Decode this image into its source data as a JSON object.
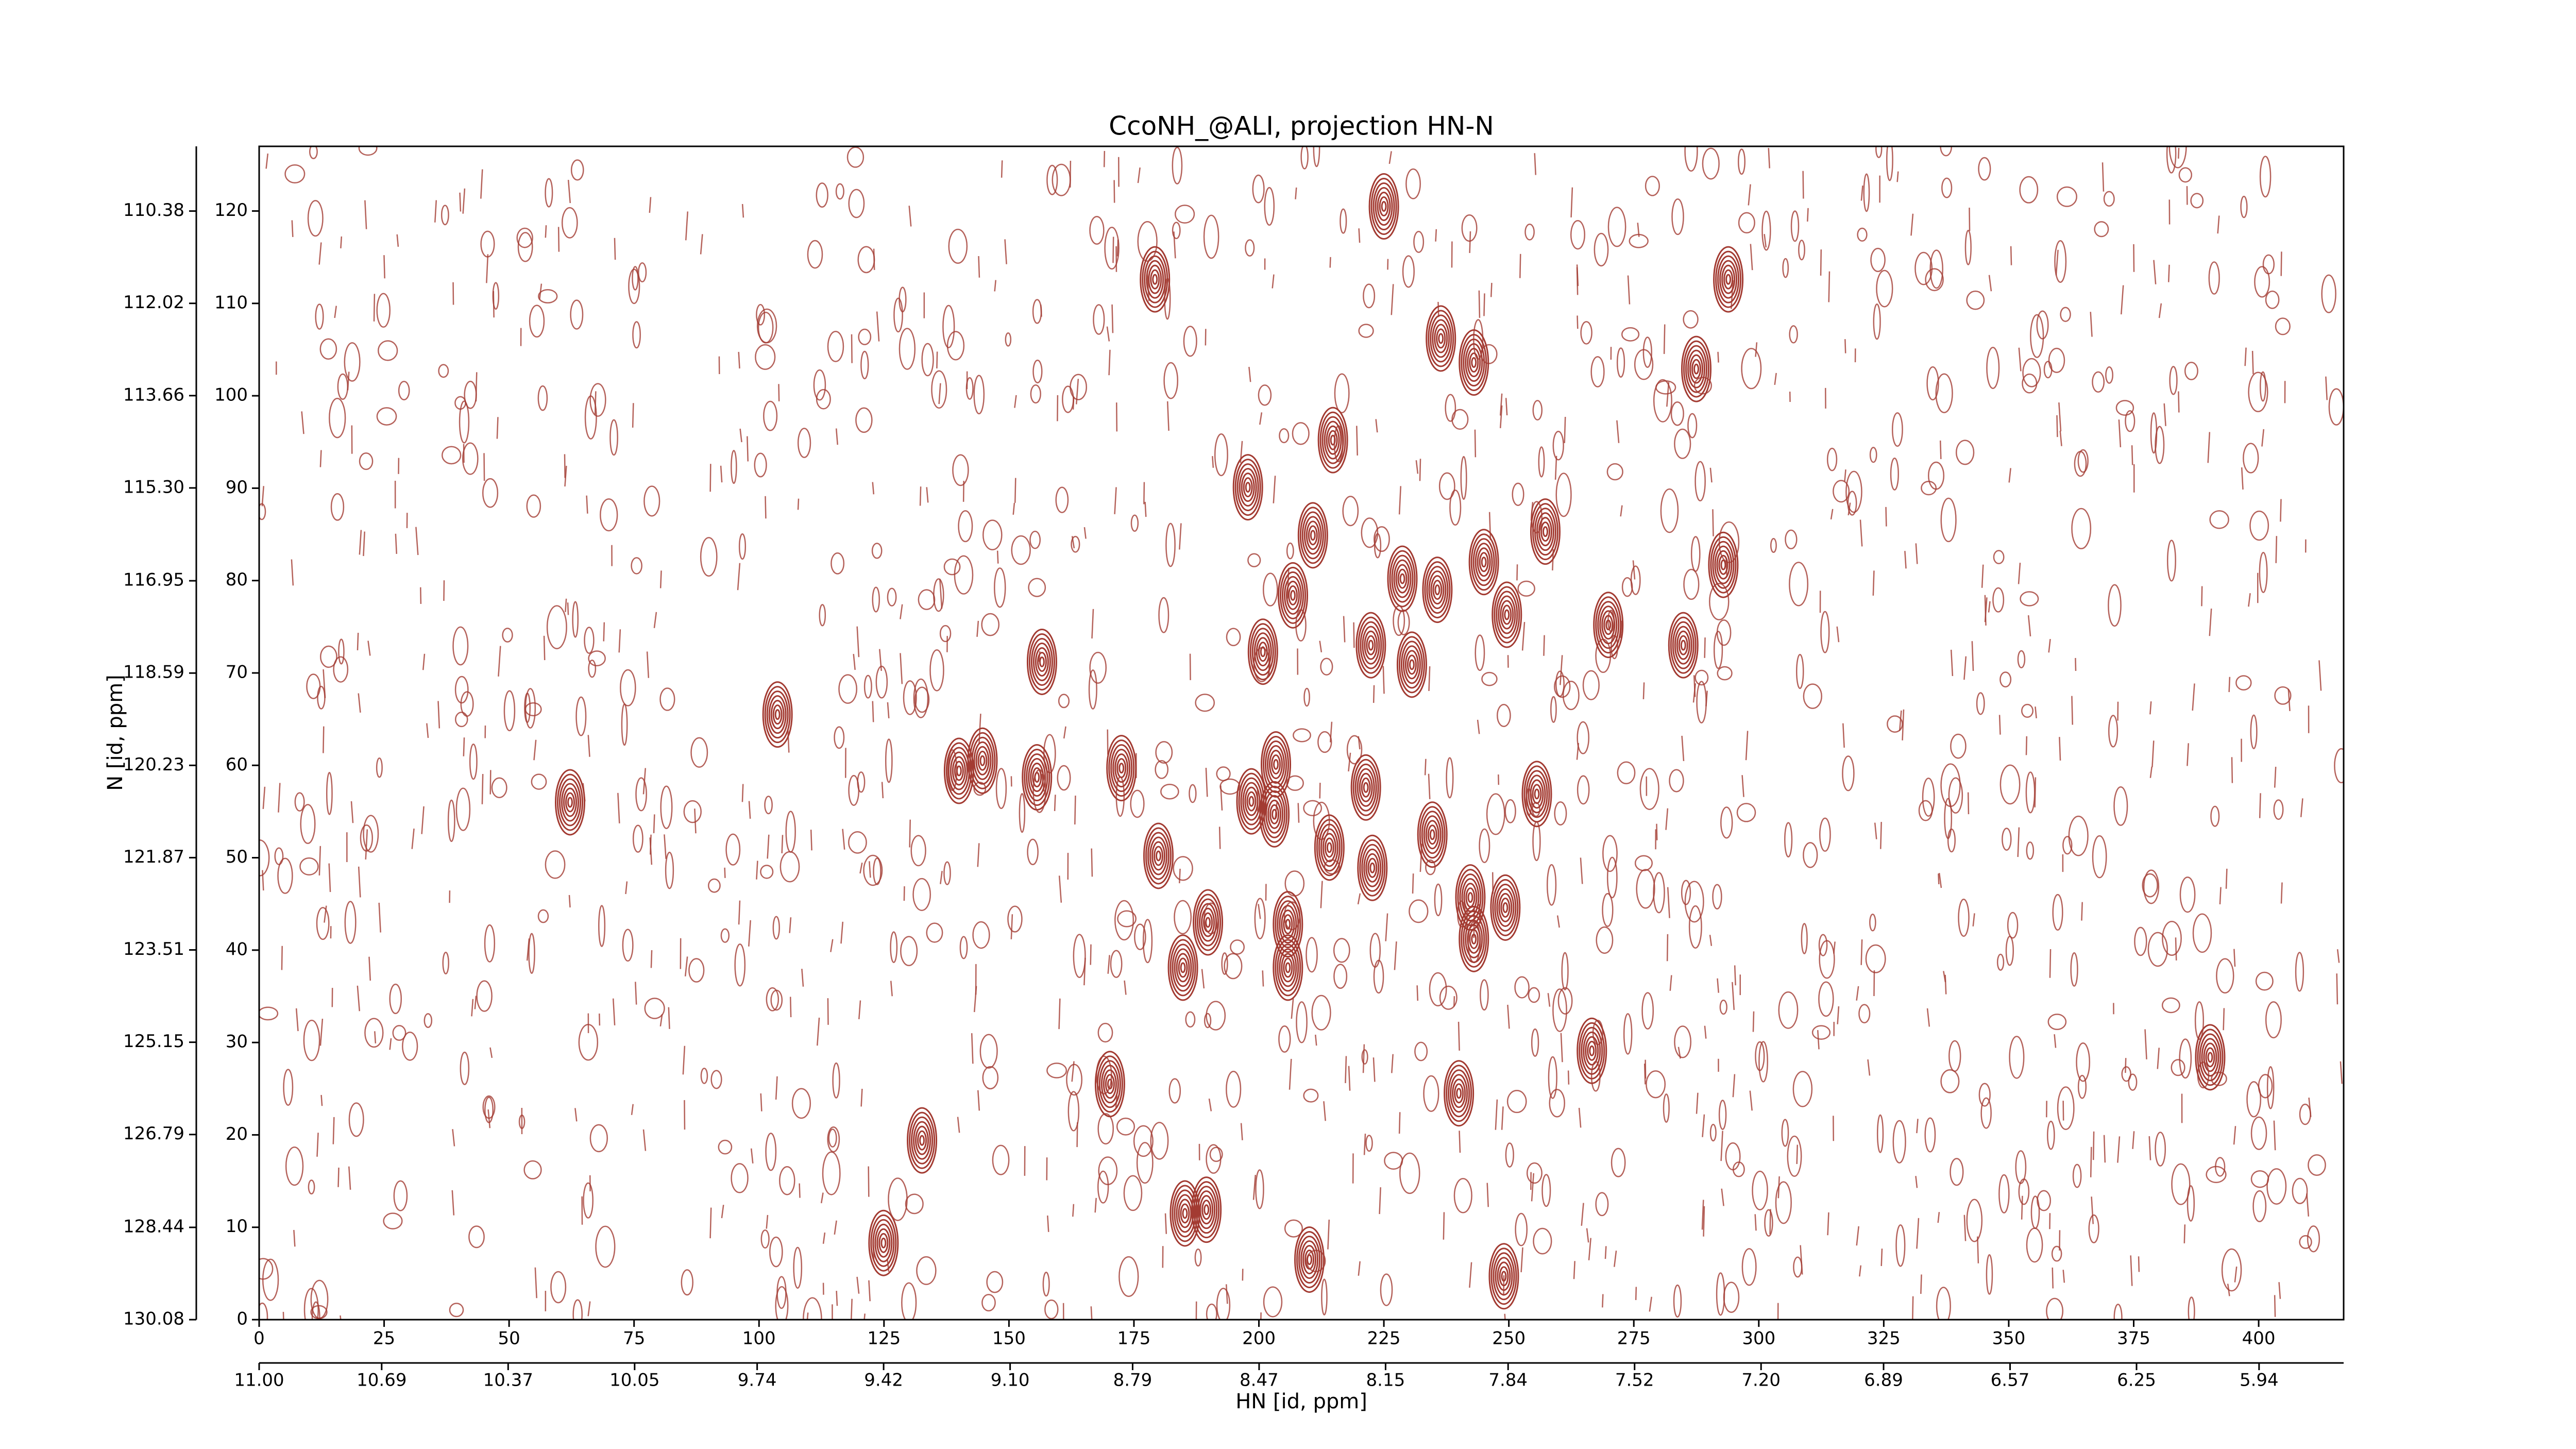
{
  "chart_data": {
    "type": "contour",
    "title": "CcoNH_@ALI, projection HN-N",
    "x_label": "HN [id, ppm]",
    "y_label": "N [id, ppm]",
    "color": "#a33b32",
    "xlim": [
      0,
      417
    ],
    "ylim": [
      0,
      127
    ],
    "xticks": [
      0,
      25,
      50,
      75,
      100,
      125,
      150,
      175,
      200,
      225,
      250,
      275,
      300,
      325,
      350,
      375,
      400
    ],
    "yticks": [
      0,
      10,
      20,
      30,
      40,
      50,
      60,
      70,
      80,
      90,
      100,
      110,
      120
    ],
    "x2lim": [
      11.0,
      5.726
    ],
    "x2ticks": [
      {
        "value": 11.0,
        "label": "11.00"
      },
      10.69,
      10.37,
      10.05,
      9.74,
      9.42,
      {
        "value": 9.1,
        "label": "9.10"
      },
      8.79,
      8.47,
      8.15,
      7.84,
      7.52,
      {
        "value": 7.2,
        "label": "7.20"
      },
      6.89,
      6.57,
      6.25,
      5.94
    ],
    "y2lim": [
      130.08,
      109.23
    ],
    "y2ticks": [
      130.08,
      128.44,
      126.79,
      125.15,
      123.51,
      121.87,
      120.23,
      118.59,
      116.95,
      {
        "value": 115.3,
        "label": "115.30"
      },
      113.66,
      112.02,
      110.38
    ],
    "peaks": {
      "x": [
        225,
        179.2,
        293.9,
        287.5,
        236.4,
        243,
        214.8,
        197.8,
        210.8,
        257.3,
        228.7,
        245,
        235.7,
        292.9,
        206.8,
        249.6,
        269.9,
        284.9,
        200.8,
        222.4,
        230.6,
        156.6,
        103.7,
        140,
        144.7,
        155.6,
        172.5,
        62.2,
        203.4,
        221.4,
        255.6,
        198.5,
        203.1,
        179.9,
        214.1,
        222.7,
        234.7,
        242.3,
        249.3,
        189.8,
        205.8,
        205.8,
        184.8,
        243,
        266.6,
        390.3,
        170.2,
        240,
        132.6,
        124.9,
        185.2,
        189.5,
        210.1,
        249
      ],
      "y": [
        120.5,
        112.6,
        112.6,
        102.9,
        106.2,
        103.6,
        95.2,
        90.1,
        84.9,
        85.3,
        80.2,
        82,
        79,
        81.7,
        78.4,
        76.3,
        75.2,
        73,
        72.3,
        73,
        70.9,
        71.2,
        65.5,
        59.4,
        60.5,
        58.7,
        59.7,
        56,
        60.1,
        57.6,
        56.9,
        56.1,
        54.7,
        50.2,
        51.1,
        48.9,
        52.5,
        45.7,
        44.6,
        43,
        42.8,
        38.1,
        38.1,
        41.2,
        29.1,
        28.4,
        25.5,
        24.5,
        19.4,
        8.3,
        11.5,
        11.9,
        6.5,
        4.7
      ]
    }
  }
}
